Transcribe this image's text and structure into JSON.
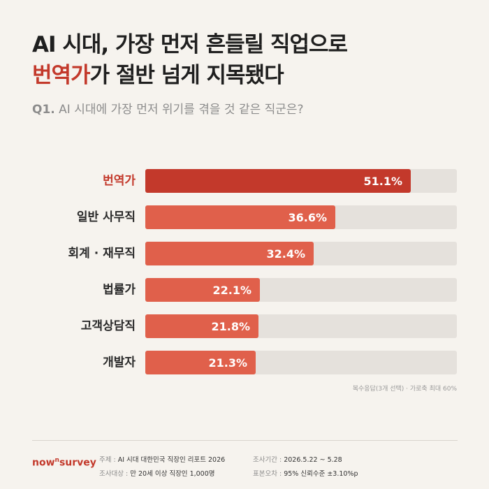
{
  "header": {
    "title_line1": "AI 시대, 가장 먼저 흔들릴 직업으로",
    "title_line2_highlight": "번역가",
    "title_line2_rest": "가 절반 넘게 지목됐다",
    "question_number": "Q1.",
    "question_text": "AI 시대에 가장 먼저 위기를 겪을 것 같은 직군은?"
  },
  "chart_data": {
    "type": "bar",
    "orientation": "horizontal",
    "categories": [
      "번역가",
      "일반 사무직",
      "회계 · 재무직",
      "법률가",
      "고객상담직",
      "개발자"
    ],
    "values": [
      51.1,
      36.6,
      32.4,
      22.1,
      21.8,
      21.3
    ],
    "value_labels": [
      "51.1%",
      "36.6%",
      "32.4%",
      "22.1%",
      "21.8%",
      "21.3%"
    ],
    "xlim": [
      0,
      60
    ],
    "grid": false,
    "highlight_index": 0,
    "colors": {
      "highlight": "#c3392b",
      "bar": "#e0604b",
      "track": "#e5e1dc"
    },
    "note": "복수응답(3개 선택) · 가로축 최대 60%"
  },
  "footer": {
    "logo_main": "now",
    "logo_sup": "n",
    "logo_rest": "survey",
    "topic_key": "주제 :",
    "topic_value": "AI 시대 대한민국 직장인 리포트 2026",
    "target_key": "조사대상 :",
    "target_value": "만 20세 이상 직장인 1,000명",
    "period_key": "조사기간 :",
    "period_value": "2026.5.22 ~ 5.28",
    "error_key": "표본오차 :",
    "error_value": "95% 신뢰수준 ±3.10%p"
  }
}
